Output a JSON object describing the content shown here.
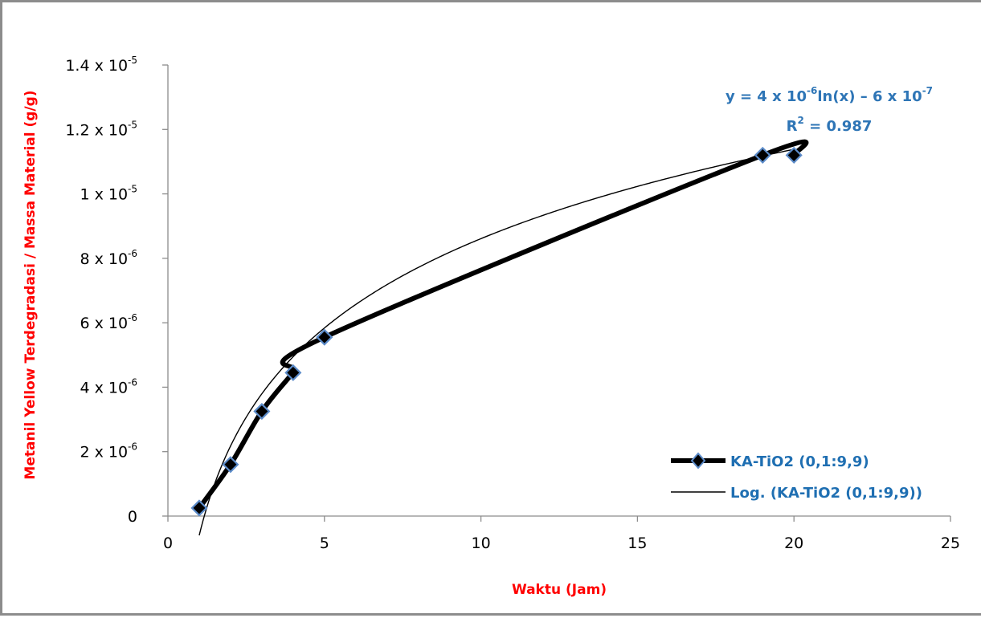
{
  "chart_data": {
    "type": "line",
    "xlabel": "Waktu (Jam)",
    "ylabel": "Metanil Yellow Terdegradasi / Massa Material (g/g)",
    "xlim": [
      0,
      25
    ],
    "ylim": [
      0,
      1.4e-05
    ],
    "x_ticks": [
      "0",
      "5",
      "10",
      "15",
      "20",
      "25"
    ],
    "y_ticks": [
      {
        "value": 0,
        "mantissa": "0",
        "base": "",
        "exp": ""
      },
      {
        "value": 2e-06,
        "mantissa": "2 x 10",
        "base": "",
        "exp": "-6"
      },
      {
        "value": 4e-06,
        "mantissa": "4 x 10",
        "base": "",
        "exp": "-6"
      },
      {
        "value": 6e-06,
        "mantissa": "6 x 10",
        "base": "",
        "exp": "-6"
      },
      {
        "value": 8e-06,
        "mantissa": "8 x 10",
        "base": "",
        "exp": "-6"
      },
      {
        "value": 1e-05,
        "mantissa": "1 x 10",
        "base": "",
        "exp": "-5"
      },
      {
        "value": 1.2e-05,
        "mantissa": "1.2 x 10",
        "base": "",
        "exp": "-5"
      },
      {
        "value": 1.4e-05,
        "mantissa": "1.4 x 10",
        "base": "",
        "exp": "-5"
      }
    ],
    "grid": false,
    "legend_position": "bottom-right",
    "series": [
      {
        "name": "KA-TiO2 (0,1:9,9)",
        "x": [
          1,
          2,
          3,
          4,
          5,
          19,
          20
        ],
        "y": [
          2.5e-07,
          1.6e-06,
          3.25e-06,
          4.45e-06,
          5.55e-06,
          1.12e-05,
          1.12e-05
        ],
        "color": "#000000",
        "marker": "diamond",
        "marker_fill": "#000000",
        "marker_edge": "#5b8bc9"
      }
    ],
    "trendline": {
      "name": "Log. (KA-TiO2 (0,1:9,9))",
      "type": "logarithmic",
      "a": 4e-06,
      "b": -6e-07,
      "color": "#000000"
    },
    "equation": {
      "prefix": "y = 4 x 10",
      "exp1": "-6",
      "mid": "ln(x) – 6 x 10",
      "exp2": "-7",
      "r2_prefix": "R",
      "r2_exp": "2",
      "r2_value": " = 0.987",
      "color": "#2e75b6"
    },
    "label_color": "#ff0000",
    "legend_color": "#1f6fb2"
  }
}
